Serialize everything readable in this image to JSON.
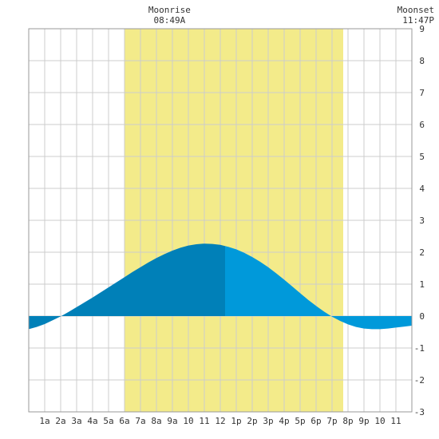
{
  "chart_data": {
    "type": "area",
    "title": "",
    "xlabel": "",
    "ylabel": "",
    "xlim": [
      0,
      24
    ],
    "ylim": [
      -3,
      9
    ],
    "grid": true,
    "x_ticks": [
      {
        "x": 1,
        "label": "1a"
      },
      {
        "x": 2,
        "label": "2a"
      },
      {
        "x": 3,
        "label": "3a"
      },
      {
        "x": 4,
        "label": "4a"
      },
      {
        "x": 5,
        "label": "5a"
      },
      {
        "x": 6,
        "label": "6a"
      },
      {
        "x": 7,
        "label": "7a"
      },
      {
        "x": 8,
        "label": "8a"
      },
      {
        "x": 9,
        "label": "9a"
      },
      {
        "x": 10,
        "label": "10"
      },
      {
        "x": 11,
        "label": "11"
      },
      {
        "x": 12,
        "label": "12"
      },
      {
        "x": 13,
        "label": "1p"
      },
      {
        "x": 14,
        "label": "2p"
      },
      {
        "x": 15,
        "label": "3p"
      },
      {
        "x": 16,
        "label": "4p"
      },
      {
        "x": 17,
        "label": "5p"
      },
      {
        "x": 18,
        "label": "6p"
      },
      {
        "x": 19,
        "label": "7p"
      },
      {
        "x": 20,
        "label": "8p"
      },
      {
        "x": 21,
        "label": "9p"
      },
      {
        "x": 22,
        "label": "10"
      },
      {
        "x": 23,
        "label": "11"
      }
    ],
    "y_ticks": [
      -3,
      -2,
      -1,
      0,
      1,
      2,
      3,
      4,
      5,
      6,
      7,
      8,
      9
    ],
    "daylight": {
      "start": 6,
      "end": 19.7,
      "color": "#f3eb8a"
    },
    "tide_curve": {
      "x": [
        0,
        0.5,
        1,
        1.5,
        2,
        2.5,
        3,
        3.5,
        4,
        4.5,
        5,
        5.5,
        6,
        6.5,
        7,
        7.5,
        8,
        8.5,
        9,
        9.5,
        10,
        10.5,
        11,
        11.5,
        12,
        12.5,
        13,
        13.5,
        14,
        14.5,
        15,
        15.5,
        16,
        16.5,
        17,
        17.5,
        18,
        18.5,
        19,
        19.5,
        20,
        20.5,
        21,
        21.5,
        22,
        22.5,
        23,
        23.5,
        24
      ],
      "y": [
        -0.41,
        -0.34,
        -0.25,
        -0.13,
        -0.01,
        0.13,
        0.28,
        0.43,
        0.58,
        0.74,
        0.9,
        1.06,
        1.22,
        1.38,
        1.53,
        1.68,
        1.82,
        1.94,
        2.05,
        2.14,
        2.21,
        2.25,
        2.27,
        2.26,
        2.23,
        2.17,
        2.09,
        1.98,
        1.85,
        1.7,
        1.53,
        1.34,
        1.14,
        0.93,
        0.72,
        0.51,
        0.32,
        0.14,
        -0.02,
        -0.15,
        -0.26,
        -0.34,
        -0.39,
        -0.41,
        -0.41,
        -0.39,
        -0.36,
        -0.33,
        -0.3
      ],
      "split_x": 12.3,
      "color_before": "#0080b8",
      "color_after": "#0099da"
    },
    "annotations": [
      {
        "heading": "Moonrise",
        "time": "08:49A",
        "x": 8.82
      },
      {
        "heading": "Moonset",
        "time": "11:47P",
        "x": 23.78
      }
    ],
    "grid_color": "#cccccc"
  }
}
